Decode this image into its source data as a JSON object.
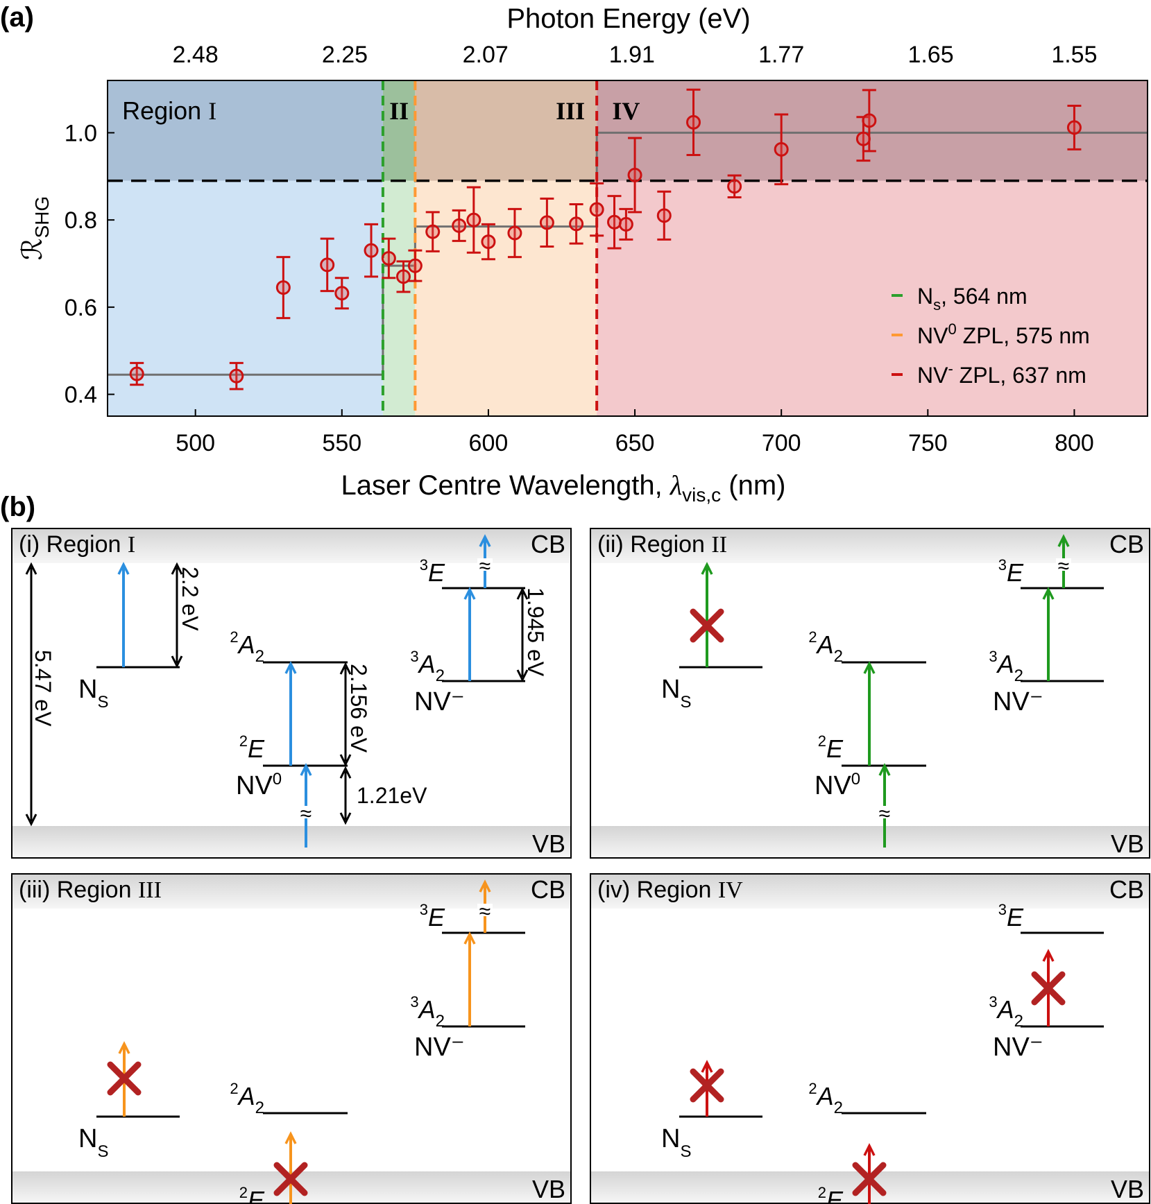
{
  "panel_a": {
    "label": "(a)",
    "top_axis_title": "Photon Energy (eV)",
    "top_ticks": [
      {
        "at": 500,
        "label": "2.48"
      },
      {
        "at": 551,
        "label": "2.25"
      },
      {
        "at": 599,
        "label": "2.07"
      },
      {
        "at": 649,
        "label": "1.91"
      },
      {
        "at": 700,
        "label": "1.77"
      },
      {
        "at": 751,
        "label": "1.65"
      },
      {
        "at": 800,
        "label": "1.55"
      }
    ],
    "ylabel_main": "ℛ",
    "ylabel_sub": "SHG",
    "xlabel_main": "Laser Centre Wavelength, ",
    "xlabel_lambda": "λ",
    "xlabel_sub": "vis,c",
    "xlabel_unit": " (nm)",
    "region_labels": [
      {
        "text": "Region I",
        "x": 475,
        "y": 1.05,
        "anchor": "start"
      },
      {
        "text": "II",
        "x": 569.5,
        "y": 1.05,
        "anchor": "middle"
      },
      {
        "text": "III",
        "x": 628,
        "y": 1.05,
        "anchor": "middle"
      },
      {
        "text": "IV",
        "x": 647,
        "y": 1.05,
        "anchor": "middle"
      }
    ],
    "legend": [
      {
        "main": "N",
        "sup": "",
        "sub": "s",
        "rest": ", 564 nm",
        "color": "#2ca02c"
      },
      {
        "main": "NV",
        "sup": "0",
        "sub": "",
        "rest": " ZPL, 575 nm",
        "color": "#ff9933"
      },
      {
        "main": "NV",
        "sup": "-",
        "sub": "",
        "rest": " ZPL, 637 nm",
        "color": "#cc1111"
      }
    ]
  },
  "chart_data": {
    "type": "scatter",
    "xlabel": "Laser Centre Wavelength, λvis,c (nm)",
    "ylabel": "ℛSHG",
    "xlim": [
      470,
      825
    ],
    "ylim": [
      0.35,
      1.12
    ],
    "xticks": [
      500,
      550,
      600,
      650,
      700,
      750,
      800
    ],
    "yticks": [
      0.4,
      0.6,
      0.8,
      1.0
    ],
    "ytick_labels": [
      "0.4",
      "0.6",
      "0.8",
      "1.0"
    ],
    "top_axis": "Photon Energy (eV)",
    "threshold": 0.89,
    "regions": [
      {
        "name": "I",
        "x0": 470,
        "x1": 564,
        "color": "#cfe3f5"
      },
      {
        "name": "II",
        "x0": 564,
        "x1": 575,
        "color": "#d2ebd2"
      },
      {
        "name": "III",
        "x0": 575,
        "x1": 637,
        "color": "#fde6d0"
      },
      {
        "name": "IV",
        "x0": 637,
        "x1": 825,
        "color": "#f3c9cc"
      }
    ],
    "upper_band_colors": [
      "#a9bfd6",
      "#9cc09c",
      "#d8bca8",
      "#c8a0a6"
    ],
    "markers": [
      {
        "x": 564,
        "color": "#2ca02c"
      },
      {
        "x": 575,
        "color": "#ff9933"
      },
      {
        "x": 637,
        "color": "#cc1111"
      }
    ],
    "step_fit": [
      {
        "x0": 470,
        "x1": 564,
        "y": 0.445
      },
      {
        "x0": 564,
        "x1": 575,
        "y": 0.695
      },
      {
        "x0": 575,
        "x1": 637,
        "y": 0.785
      },
      {
        "x0": 637,
        "x1": 825,
        "y": 1.0
      }
    ],
    "series": [
      {
        "marker_color": "#cc1111",
        "x": [
          480,
          514,
          530,
          545,
          550,
          560,
          566,
          571,
          575,
          581,
          590,
          595,
          600,
          609,
          620,
          630,
          637,
          643,
          647,
          650,
          660,
          670,
          684,
          700,
          728,
          730,
          800
        ],
        "y": [
          0.447,
          0.442,
          0.645,
          0.697,
          0.632,
          0.73,
          0.712,
          0.67,
          0.695,
          0.773,
          0.787,
          0.8,
          0.75,
          0.77,
          0.794,
          0.791,
          0.824,
          0.795,
          0.79,
          0.903,
          0.81,
          1.024,
          0.877,
          0.962,
          0.986,
          1.028,
          1.012
        ],
        "err": [
          0.025,
          0.03,
          0.07,
          0.06,
          0.035,
          0.06,
          0.045,
          0.035,
          0.035,
          0.045,
          0.035,
          0.075,
          0.04,
          0.055,
          0.055,
          0.045,
          0.06,
          0.06,
          0.035,
          0.085,
          0.055,
          0.075,
          0.025,
          0.08,
          0.05,
          0.07,
          0.05
        ]
      }
    ]
  },
  "panel_b": {
    "label": "(b)",
    "cb": "CB",
    "vb": "VB",
    "approx": "≈",
    "ns": {
      "main": "N",
      "sub": "S"
    },
    "nv0": {
      "main": "NV",
      "sup": "0"
    },
    "nvm": "NV⁻",
    "level_2A2": {
      "sup": "2",
      "main": "A",
      "sub": "2"
    },
    "level_2E": {
      "sup": "2",
      "main": "E"
    },
    "level_3A2": {
      "sup": "3",
      "main": "A",
      "sub": "2"
    },
    "level_3E": {
      "sup": "3",
      "main": "E"
    },
    "energies": {
      "e1": "2.2 eV",
      "e2": "5.47 eV",
      "e3": "2.156 eV",
      "e4": "1.21eV",
      "e5": "1.945 eV"
    },
    "subpanels": [
      {
        "prefix": "(i) Region ",
        "roman": "I",
        "color": "#2b8fdf"
      },
      {
        "prefix": "(ii) Region ",
        "roman": "II",
        "color": "#1f9a1f"
      },
      {
        "prefix": "(iii) Region ",
        "roman": "III",
        "color": "#f7941d"
      },
      {
        "prefix": "(iv) Region ",
        "roman": "IV",
        "color": "#cc1111"
      }
    ],
    "cross_color": "#b22222"
  }
}
